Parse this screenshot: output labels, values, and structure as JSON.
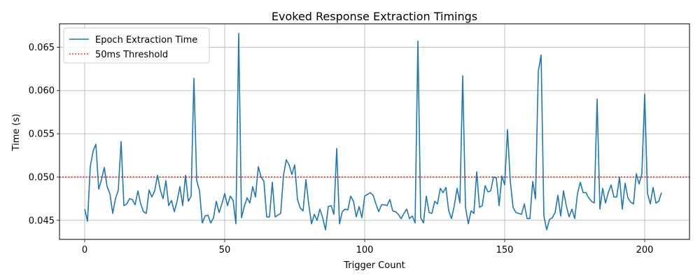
{
  "chart_data": {
    "type": "line",
    "title": "Evoked Response Extraction Timings",
    "xlabel": "Trigger Count",
    "ylabel": "Time (s)",
    "xlim": [
      -9,
      216
    ],
    "ylim": [
      0.0428,
      0.0677
    ],
    "x_ticks": [
      0,
      50,
      100,
      150,
      200
    ],
    "y_ticks": [
      0.045,
      0.05,
      0.055,
      0.06,
      0.065
    ],
    "y_tick_labels": [
      "0.045",
      "0.050",
      "0.055",
      "0.060",
      "0.065"
    ],
    "grid": true,
    "legend_position": "top-left",
    "series": [
      {
        "name": "Epoch Extraction Time",
        "color": "#1f77b4",
        "style": "solid",
        "values": [
          0.0463,
          0.0449,
          0.0512,
          0.053,
          0.0538,
          0.0486,
          0.0497,
          0.0511,
          0.0489,
          0.0481,
          0.0458,
          0.0475,
          0.0485,
          0.0541,
          0.0467,
          0.0469,
          0.0475,
          0.0474,
          0.0468,
          0.0484,
          0.0469,
          0.046,
          0.0458,
          0.0485,
          0.0477,
          0.0484,
          0.0502,
          0.0485,
          0.0475,
          0.0496,
          0.0467,
          0.0473,
          0.046,
          0.0472,
          0.0489,
          0.0467,
          0.0502,
          0.0472,
          0.0478,
          0.0614,
          0.0496,
          0.0484,
          0.0447,
          0.0455,
          0.0456,
          0.0447,
          0.0453,
          0.0472,
          0.0459,
          0.0469,
          0.0481,
          0.0467,
          0.0478,
          0.0473,
          0.0446,
          0.0666,
          0.0453,
          0.0466,
          0.0476,
          0.047,
          0.0489,
          0.0477,
          0.0512,
          0.05,
          0.0495,
          0.0454,
          0.0454,
          0.0494,
          0.0454,
          0.0456,
          0.0458,
          0.0502,
          0.052,
          0.0514,
          0.0503,
          0.0514,
          0.0474,
          0.0464,
          0.0461,
          0.0497,
          0.0469,
          0.0446,
          0.0457,
          0.045,
          0.0463,
          0.0453,
          0.0439,
          0.0466,
          0.0467,
          0.0457,
          0.0533,
          0.0446,
          0.046,
          0.0463,
          0.0462,
          0.0478,
          0.0472,
          0.0454,
          0.0466,
          0.0453,
          0.0478,
          0.048,
          0.0482,
          0.0479,
          0.0469,
          0.046,
          0.0468,
          0.0468,
          0.0467,
          0.0474,
          0.0461,
          0.046,
          0.0457,
          0.0452,
          0.0458,
          0.0463,
          0.0452,
          0.0455,
          0.0447,
          0.0657,
          0.0453,
          0.0447,
          0.0478,
          0.0459,
          0.0458,
          0.0472,
          0.0469,
          0.0487,
          0.0482,
          0.0488,
          0.0461,
          0.0452,
          0.0467,
          0.0487,
          0.047,
          0.0617,
          0.0465,
          0.0446,
          0.0461,
          0.0458,
          0.0506,
          0.0465,
          0.0467,
          0.049,
          0.0483,
          0.0484,
          0.05,
          0.0499,
          0.0467,
          0.0501,
          0.0491,
          0.0555,
          0.0495,
          0.0465,
          0.0459,
          0.0458,
          0.0457,
          0.0469,
          0.0452,
          0.0452,
          0.0495,
          0.0475,
          0.0622,
          0.0641,
          0.0455,
          0.0439,
          0.0451,
          0.0453,
          0.0459,
          0.0479,
          0.0455,
          0.0484,
          0.0467,
          0.0454,
          0.0463,
          0.0452,
          0.0481,
          0.0494,
          0.0482,
          0.0482,
          0.0476,
          0.0472,
          0.047,
          0.059,
          0.0463,
          0.0487,
          0.047,
          0.0482,
          0.0491,
          0.0477,
          0.0477,
          0.05,
          0.0463,
          0.0493,
          0.0476,
          0.0471,
          0.0469,
          0.0504,
          0.0492,
          0.0504,
          0.0596,
          0.0481,
          0.0469,
          0.0488,
          0.047,
          0.0472,
          0.0482
        ]
      },
      {
        "name": "50ms Threshold",
        "color": "#ff0000",
        "style": "dotted",
        "value": 0.05
      }
    ]
  }
}
